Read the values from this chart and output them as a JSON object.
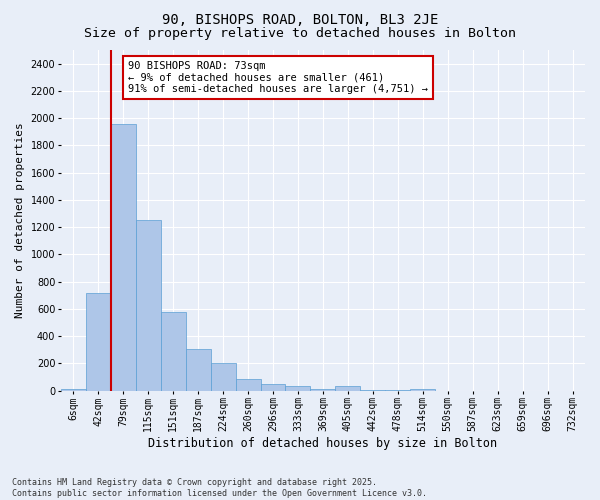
{
  "title1": "90, BISHOPS ROAD, BOLTON, BL3 2JE",
  "title2": "Size of property relative to detached houses in Bolton",
  "xlabel": "Distribution of detached houses by size in Bolton",
  "ylabel": "Number of detached properties",
  "categories": [
    "6sqm",
    "42sqm",
    "79sqm",
    "115sqm",
    "151sqm",
    "187sqm",
    "224sqm",
    "260sqm",
    "296sqm",
    "333sqm",
    "369sqm",
    "405sqm",
    "442sqm",
    "478sqm",
    "514sqm",
    "550sqm",
    "587sqm",
    "623sqm",
    "659sqm",
    "696sqm",
    "732sqm"
  ],
  "values": [
    15,
    720,
    1960,
    1250,
    580,
    305,
    200,
    85,
    50,
    35,
    10,
    35,
    5,
    5,
    15,
    0,
    0,
    0,
    0,
    0,
    0
  ],
  "bar_color": "#aec6e8",
  "bar_edge_color": "#5a9fd4",
  "background_color": "#e8eef8",
  "grid_color": "#ffffff",
  "annotation_text": "90 BISHOPS ROAD: 73sqm\n← 9% of detached houses are smaller (461)\n91% of semi-detached houses are larger (4,751) →",
  "annotation_box_color": "#ffffff",
  "annotation_box_edge": "#cc0000",
  "vline_color": "#cc0000",
  "ylim": [
    0,
    2500
  ],
  "yticks": [
    0,
    200,
    400,
    600,
    800,
    1000,
    1200,
    1400,
    1600,
    1800,
    2000,
    2200,
    2400
  ],
  "footer": "Contains HM Land Registry data © Crown copyright and database right 2025.\nContains public sector information licensed under the Open Government Licence v3.0.",
  "title1_fontsize": 10,
  "title2_fontsize": 9.5,
  "xlabel_fontsize": 8.5,
  "ylabel_fontsize": 8,
  "tick_fontsize": 7,
  "annotation_fontsize": 7.5,
  "footer_fontsize": 6
}
